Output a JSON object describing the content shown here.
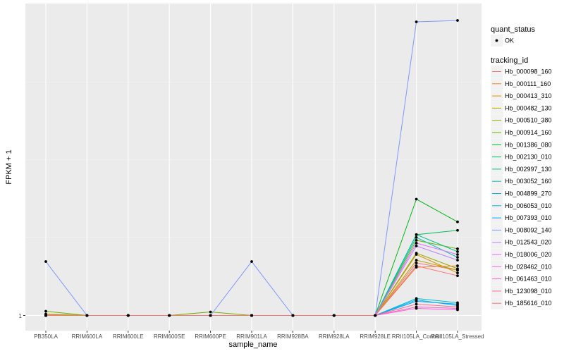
{
  "chart_data": {
    "type": "line",
    "xlabel": "sample_name",
    "ylabel": "FPKM + 1",
    "y_tick_labels": [
      "1"
    ],
    "categories": [
      "PB350LA",
      "RRIM600LA",
      "RRIM600LE",
      "RRIM600SE",
      "RRIM600PE",
      "RRIM901LA",
      "RRIM928BA",
      "RRIM928LA",
      "RRIM928LE",
      "RRII105LA_Control",
      "RRII105LA_Stressed"
    ],
    "x_tick_labels": [
      "PB350LA",
      "RRIM600LA",
      "RRIM600LE",
      "RRIM600SE",
      "RRIM600PE",
      "RRIM901LA",
      "RRIM928BA",
      "RRIM928LA",
      "RRIM928LE",
      "RRII105LA_Control",
      "RRII105LA_Stressed"
    ],
    "ylim": [
      0,
      210
    ],
    "grid": true,
    "legend_position": "right",
    "point_color": "#000000",
    "panel_background": "#ebebeb",
    "legends": {
      "points": {
        "title": "quant_status",
        "entries": [
          "OK"
        ]
      },
      "lines": {
        "title": "tracking_id",
        "entries": [
          {
            "label": "Hb_000098_160",
            "color": "#F8766D"
          },
          {
            "label": "Hb_000111_160",
            "color": "#E9842C"
          },
          {
            "label": "Hb_000413_310",
            "color": "#D69100"
          },
          {
            "label": "Hb_000482_130",
            "color": "#BC9D00"
          },
          {
            "label": "Hb_000510_380",
            "color": "#9CA700"
          },
          {
            "label": "Hb_000914_160",
            "color": "#6FB000"
          },
          {
            "label": "Hb_001386_080",
            "color": "#00B813"
          },
          {
            "label": "Hb_002130_010",
            "color": "#00BD61"
          },
          {
            "label": "Hb_002997_130",
            "color": "#00C08E"
          },
          {
            "label": "Hb_003052_160",
            "color": "#00C0B4"
          },
          {
            "label": "Hb_004899_270",
            "color": "#00BDD4"
          },
          {
            "label": "Hb_006053_010",
            "color": "#00B5EE"
          },
          {
            "label": "Hb_007393_010",
            "color": "#00A7FF"
          },
          {
            "label": "Hb_008092_140",
            "color": "#7F96FF"
          },
          {
            "label": "Hb_012543_020",
            "color": "#BC81FF"
          },
          {
            "label": "Hb_018006_020",
            "color": "#E26EF7"
          },
          {
            "label": "Hb_028462_010",
            "color": "#F863DF"
          },
          {
            "label": "Hb_061463_010",
            "color": "#FF62BF"
          },
          {
            "label": "Hb_123098_010",
            "color": "#FF6A9A"
          },
          {
            "label": "Hb_185616_010",
            "color": "#FA7476"
          }
        ]
      }
    },
    "series": [
      {
        "values": [
          1.4,
          1,
          1,
          1,
          1,
          1,
          1,
          1,
          1,
          38,
          33
        ]
      },
      {
        "values": [
          1,
          1,
          1,
          1,
          1,
          1,
          1,
          1,
          1,
          35,
          36
        ]
      },
      {
        "values": [
          1,
          1,
          1,
          1,
          1,
          1,
          1,
          1,
          1,
          44,
          31
        ]
      },
      {
        "values": [
          1,
          1,
          1,
          1,
          1,
          1,
          1,
          1,
          1,
          40,
          33
        ]
      },
      {
        "values": [
          2,
          1,
          1,
          1,
          1,
          1,
          1,
          1,
          1,
          45,
          34
        ]
      },
      {
        "values": [
          4,
          1,
          1,
          1,
          3.5,
          1,
          1,
          1,
          1,
          54,
          48
        ]
      },
      {
        "values": [
          1,
          1,
          1,
          1,
          1,
          1,
          1,
          1,
          1,
          83,
          67
        ]
      },
      {
        "values": [
          1,
          1,
          1,
          1,
          1,
          1,
          1,
          1,
          1,
          58,
          61
        ]
      },
      {
        "values": [
          1,
          1,
          1,
          1,
          1,
          1,
          1,
          1,
          1,
          58,
          46
        ]
      },
      {
        "values": [
          1,
          1,
          1,
          1,
          1,
          1,
          1,
          1,
          1,
          56,
          42
        ]
      },
      {
        "values": [
          1,
          1,
          1,
          1,
          1,
          1,
          1,
          1,
          1,
          13,
          10
        ]
      },
      {
        "values": [
          1,
          1,
          1,
          1,
          1,
          1,
          1,
          1,
          1,
          12,
          8
        ]
      },
      {
        "values": [
          1,
          1,
          1,
          1,
          1,
          1,
          1,
          1,
          1,
          11,
          9
        ]
      },
      {
        "values": [
          39,
          1,
          1,
          1,
          1,
          39,
          1,
          1,
          1,
          208,
          209
        ]
      },
      {
        "values": [
          1,
          1,
          1,
          1,
          1,
          1,
          1,
          1,
          1,
          50,
          40
        ]
      },
      {
        "values": [
          1,
          1,
          1,
          1,
          1,
          1,
          1,
          1,
          1,
          52,
          44
        ]
      },
      {
        "values": [
          1,
          1,
          1,
          1,
          1,
          1,
          1,
          1,
          1,
          6,
          5
        ]
      },
      {
        "values": [
          1,
          1,
          1,
          1,
          1,
          1,
          1,
          1,
          1,
          7,
          6
        ]
      },
      {
        "values": [
          1,
          1,
          1,
          1,
          1,
          1,
          1,
          1,
          1,
          9,
          7
        ]
      },
      {
        "values": [
          1,
          1,
          1,
          1,
          1,
          1,
          1,
          1,
          1,
          36,
          29
        ]
      }
    ]
  }
}
